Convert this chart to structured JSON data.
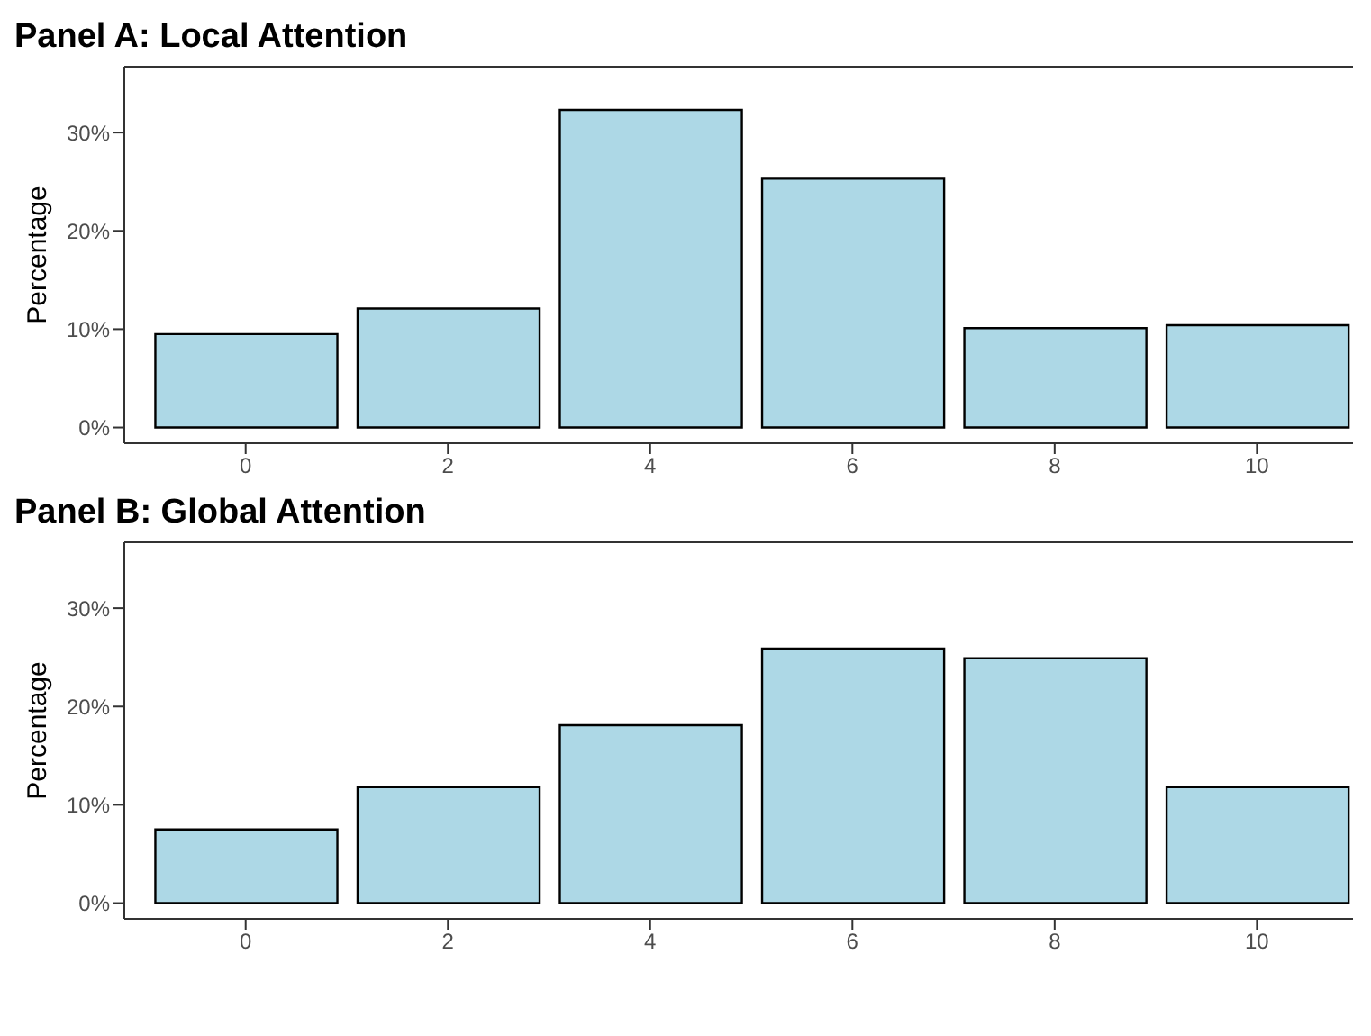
{
  "chart_data": [
    {
      "type": "bar",
      "title": "Panel A: Local Attention",
      "ylabel": "Percentage",
      "x": [
        0,
        2,
        4,
        6,
        8,
        10
      ],
      "values": [
        9.5,
        12.1,
        32.3,
        25.3,
        10.1,
        10.4
      ],
      "color": "#add8e6",
      "xlim": [
        -1.2,
        10.95
      ],
      "xticks": [
        0,
        2,
        4,
        6,
        8,
        10
      ],
      "ylim": [
        -1.6,
        36.7
      ],
      "yticks": [
        {
          "value": 0,
          "label": "0%"
        },
        {
          "value": 10,
          "label": "10%"
        },
        {
          "value": 20,
          "label": "20%"
        },
        {
          "value": 30,
          "label": "30%"
        }
      ]
    },
    {
      "type": "bar",
      "title": "Panel B: Global Attention",
      "ylabel": "Percentage",
      "x": [
        0,
        2,
        4,
        6,
        8,
        10
      ],
      "values": [
        7.5,
        11.8,
        18.1,
        25.9,
        24.9,
        11.8
      ],
      "color": "#add8e6",
      "xlim": [
        -1.2,
        10.95
      ],
      "xticks": [
        0,
        2,
        4,
        6,
        8,
        10
      ],
      "ylim": [
        -1.6,
        36.7
      ],
      "yticks": [
        {
          "value": 0,
          "label": "0%"
        },
        {
          "value": 10,
          "label": "10%"
        },
        {
          "value": 20,
          "label": "20%"
        },
        {
          "value": 30,
          "label": "30%"
        }
      ]
    }
  ]
}
